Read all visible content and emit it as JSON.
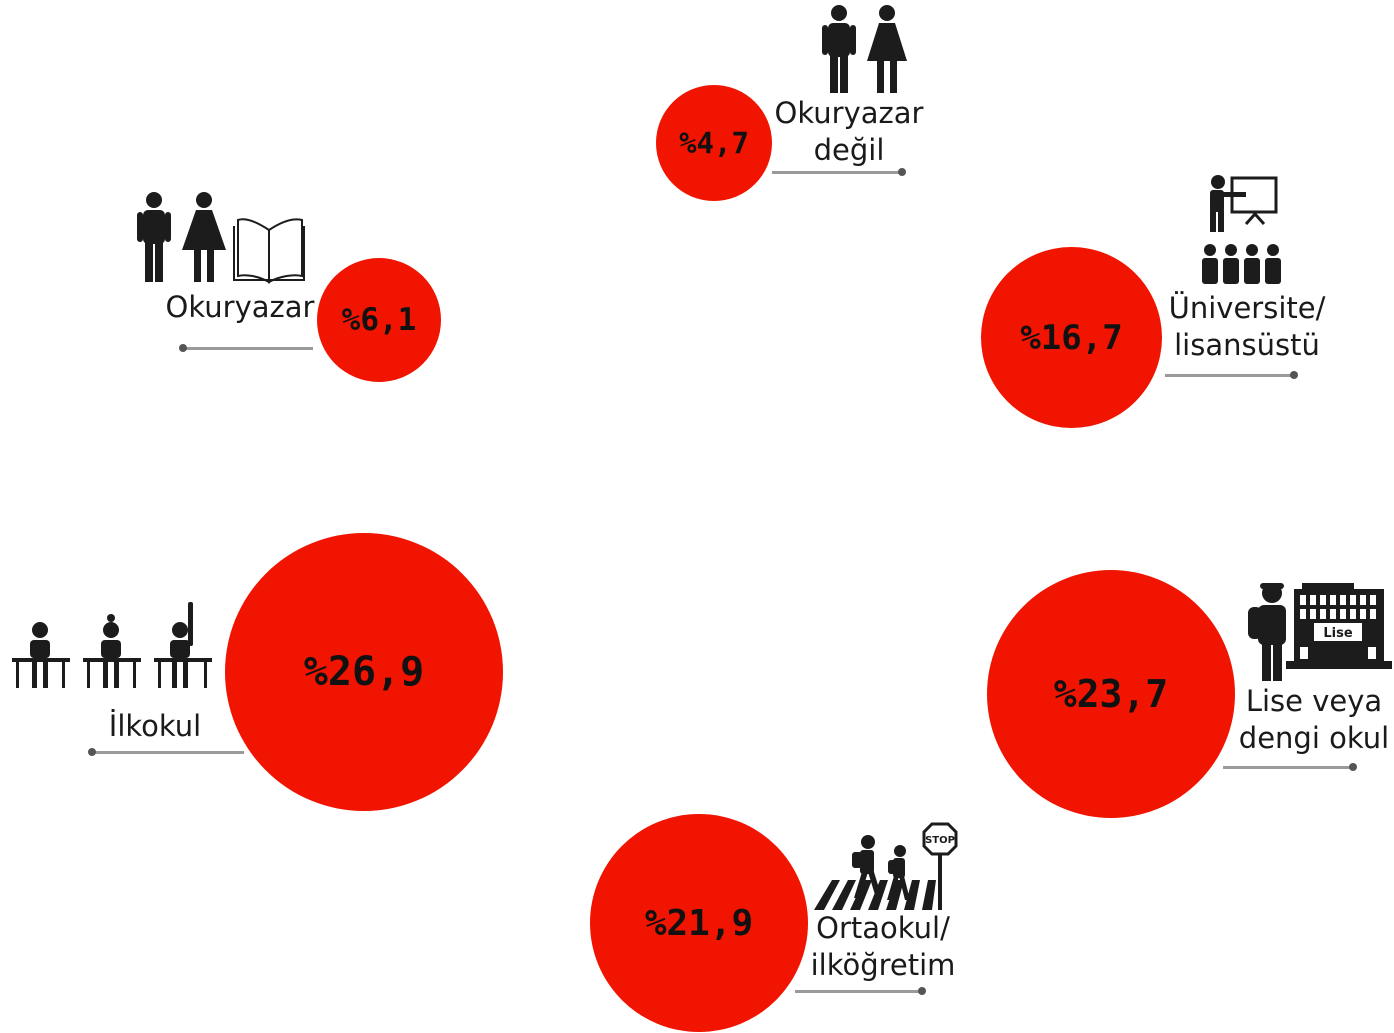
{
  "chart_data": {
    "type": "bubble",
    "unit": "%",
    "items": [
      {
        "id": "okuryazar-degil",
        "label_lines": [
          "Okuryazar",
          "değil"
        ],
        "value": 4.7,
        "value_label": "%4,7",
        "icon": "man-woman-icon"
      },
      {
        "id": "okuryazar",
        "label_lines": [
          "Okuryazar"
        ],
        "value": 6.1,
        "value_label": "%6,1",
        "icon": "man-woman-book-icon"
      },
      {
        "id": "universite",
        "label_lines": [
          "Üniversite/",
          "lisansüstü"
        ],
        "value": 16.7,
        "value_label": "%16,7",
        "icon": "lecture-presentation-icon"
      },
      {
        "id": "ilkokul",
        "label_lines": [
          "İlkokul"
        ],
        "value": 26.9,
        "value_label": "%26,9",
        "icon": "pupils-at-desks-icon"
      },
      {
        "id": "lise",
        "label_lines": [
          "Lise veya",
          "dengi okul"
        ],
        "value": 23.7,
        "value_label": "%23,7",
        "icon": "student-school-building-icon",
        "icon_text": "Lise"
      },
      {
        "id": "ortaokul",
        "label_lines": [
          "Ortaokul/",
          "ilköğretim"
        ],
        "value": 21.9,
        "value_label": "%21,9",
        "icon": "children-crosswalk-stop-sign-icon",
        "icon_text": "STOP"
      }
    ]
  },
  "colors": {
    "bubble": "#f11400",
    "text": "#1a1a1a",
    "rule": "#9a9a9a",
    "icon": "#1c1c1c"
  }
}
